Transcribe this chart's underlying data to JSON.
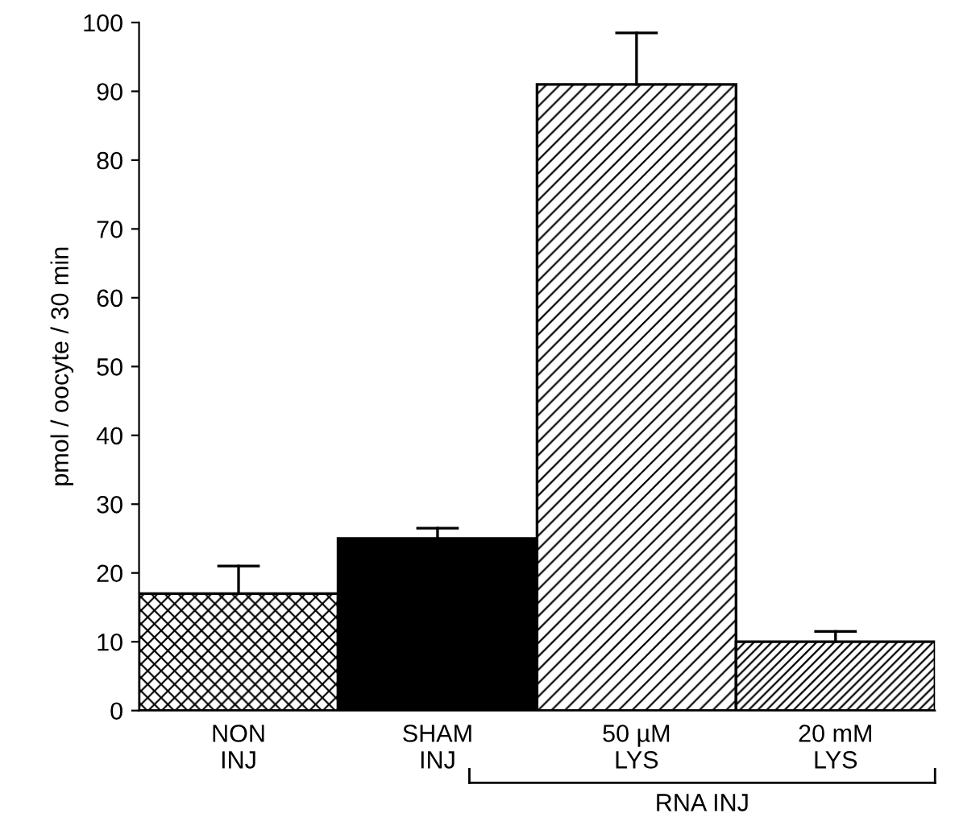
{
  "chart_data": {
    "type": "bar",
    "ylabel": "pmol / oocyte / 30 min",
    "categories": [
      "NON\nINJ",
      "SHAM\nINJ",
      "50 µM\nLYS",
      "20 mM\nLYS"
    ],
    "values": [
      17,
      25,
      91,
      10
    ],
    "errors": [
      [
        17,
        21
      ],
      [
        25,
        26.5
      ],
      [
        91,
        98.5
      ],
      [
        10,
        11.5
      ]
    ],
    "colors": [
      "#000000",
      "#000000",
      "#000000",
      "#000000"
    ],
    "ylim": [
      0,
      100
    ],
    "yticks": [
      0,
      10,
      20,
      30,
      40,
      50,
      60,
      70,
      80,
      90,
      100
    ],
    "grid": false,
    "annotations": [
      "RNA INJ"
    ]
  }
}
